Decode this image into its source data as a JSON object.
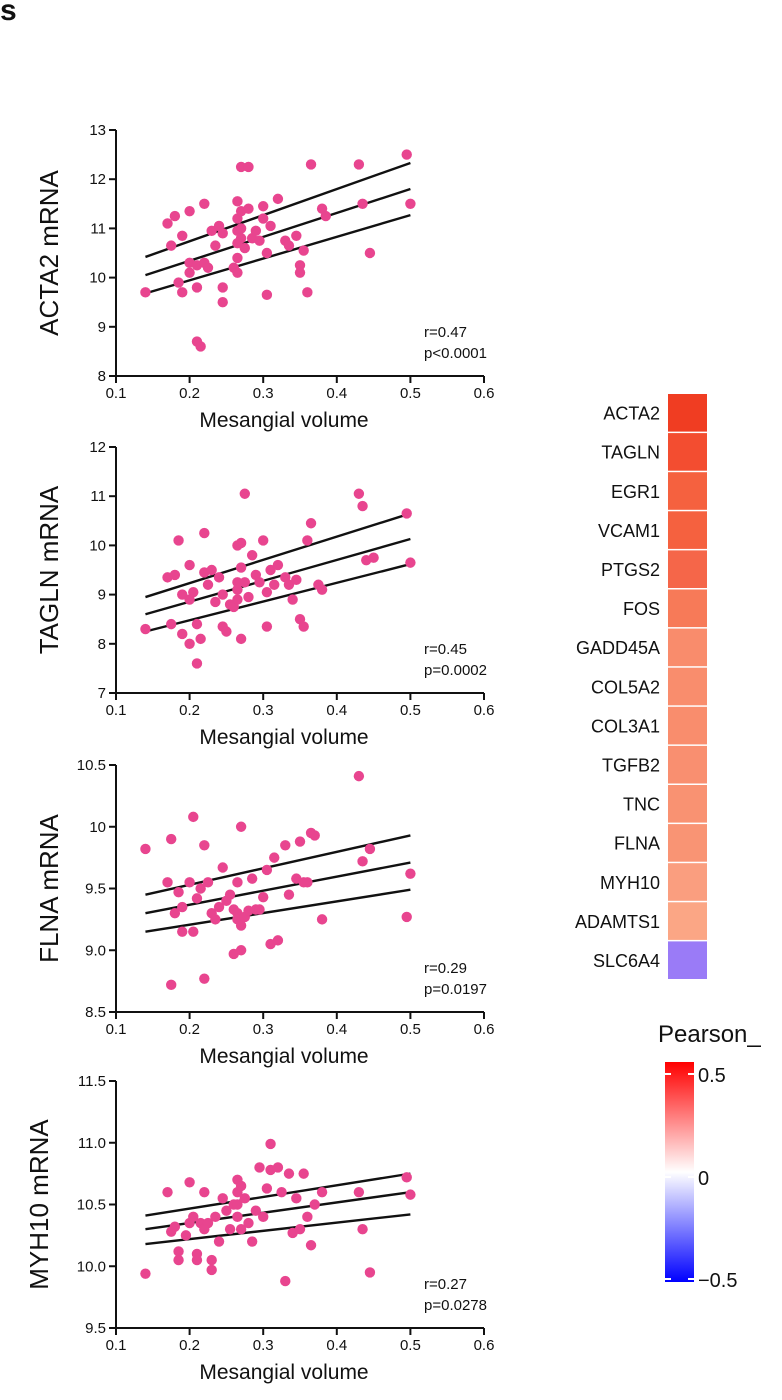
{
  "panel_letter": "s",
  "chart_data": [
    {
      "type": "scatter",
      "ylabel": "ACTA2 mRNA",
      "xlabel": "Mesangial volume",
      "xlim": [
        0.1,
        0.6
      ],
      "xticks": [
        "0.1",
        "0.2",
        "0.3",
        "0.4",
        "0.5",
        "0.6"
      ],
      "ylim": [
        8,
        13
      ],
      "yticks": [
        "8",
        "9",
        "10",
        "11",
        "12",
        "13"
      ],
      "r_text": "r=0.47",
      "p_text": "p<0.0001",
      "point_color": "#e8458f",
      "fit": {
        "x0": 0.14,
        "x1": 0.5,
        "mid": [
          10.05,
          11.8
        ],
        "upper": [
          10.42,
          12.33
        ],
        "lower": [
          9.68,
          11.27
        ]
      },
      "points": [
        [
          0.14,
          9.7
        ],
        [
          0.17,
          11.1
        ],
        [
          0.175,
          10.65
        ],
        [
          0.18,
          11.25
        ],
        [
          0.185,
          9.9
        ],
        [
          0.19,
          10.85
        ],
        [
          0.19,
          9.7
        ],
        [
          0.2,
          11.35
        ],
        [
          0.2,
          10.3
        ],
        [
          0.2,
          10.1
        ],
        [
          0.21,
          10.25
        ],
        [
          0.21,
          9.8
        ],
        [
          0.21,
          8.7
        ],
        [
          0.215,
          8.6
        ],
        [
          0.22,
          11.5
        ],
        [
          0.22,
          10.3
        ],
        [
          0.225,
          10.2
        ],
        [
          0.23,
          10.95
        ],
        [
          0.235,
          10.65
        ],
        [
          0.24,
          11.05
        ],
        [
          0.245,
          10.9
        ],
        [
          0.245,
          9.8
        ],
        [
          0.245,
          9.5
        ],
        [
          0.26,
          10.2
        ],
        [
          0.265,
          11.55
        ],
        [
          0.265,
          11.2
        ],
        [
          0.265,
          10.95
        ],
        [
          0.265,
          10.7
        ],
        [
          0.265,
          10.4
        ],
        [
          0.265,
          10.1
        ],
        [
          0.27,
          12.25
        ],
        [
          0.27,
          11.35
        ],
        [
          0.27,
          11.0
        ],
        [
          0.27,
          10.8
        ],
        [
          0.275,
          10.6
        ],
        [
          0.28,
          12.25
        ],
        [
          0.28,
          11.4
        ],
        [
          0.285,
          10.8
        ],
        [
          0.29,
          10.95
        ],
        [
          0.295,
          10.75
        ],
        [
          0.3,
          11.45
        ],
        [
          0.3,
          11.2
        ],
        [
          0.305,
          10.5
        ],
        [
          0.305,
          9.65
        ],
        [
          0.31,
          11.05
        ],
        [
          0.32,
          11.6
        ],
        [
          0.33,
          10.75
        ],
        [
          0.335,
          10.65
        ],
        [
          0.345,
          10.85
        ],
        [
          0.35,
          10.25
        ],
        [
          0.35,
          10.1
        ],
        [
          0.355,
          10.55
        ],
        [
          0.36,
          9.7
        ],
        [
          0.365,
          12.3
        ],
        [
          0.38,
          11.4
        ],
        [
          0.385,
          11.25
        ],
        [
          0.43,
          12.3
        ],
        [
          0.435,
          11.5
        ],
        [
          0.445,
          10.5
        ],
        [
          0.495,
          12.5
        ],
        [
          0.5,
          11.5
        ]
      ]
    },
    {
      "type": "scatter",
      "ylabel": "TAGLN mRNA",
      "xlabel": "Mesangial volume",
      "xlim": [
        0.1,
        0.6
      ],
      "xticks": [
        "0.1",
        "0.2",
        "0.3",
        "0.4",
        "0.5",
        "0.6"
      ],
      "ylim": [
        7,
        12
      ],
      "yticks": [
        "7",
        "8",
        "9",
        "10",
        "11",
        "12"
      ],
      "r_text": "r=0.45",
      "p_text": "p=0.0002",
      "point_color": "#e8458f",
      "fit": {
        "x0": 0.14,
        "x1": 0.5,
        "mid": [
          8.6,
          10.13
        ],
        "upper": [
          8.95,
          10.65
        ],
        "lower": [
          8.25,
          9.62
        ]
      },
      "points": [
        [
          0.14,
          8.3
        ],
        [
          0.17,
          9.35
        ],
        [
          0.175,
          8.4
        ],
        [
          0.18,
          9.4
        ],
        [
          0.185,
          10.1
        ],
        [
          0.19,
          8.2
        ],
        [
          0.19,
          9.0
        ],
        [
          0.2,
          8.0
        ],
        [
          0.2,
          8.9
        ],
        [
          0.2,
          9.6
        ],
        [
          0.205,
          9.05
        ],
        [
          0.21,
          7.6
        ],
        [
          0.21,
          8.4
        ],
        [
          0.215,
          8.1
        ],
        [
          0.22,
          10.25
        ],
        [
          0.22,
          9.45
        ],
        [
          0.225,
          9.2
        ],
        [
          0.23,
          9.5
        ],
        [
          0.235,
          8.85
        ],
        [
          0.24,
          9.35
        ],
        [
          0.245,
          9.0
        ],
        [
          0.245,
          8.35
        ],
        [
          0.25,
          8.25
        ],
        [
          0.255,
          8.8
        ],
        [
          0.26,
          8.75
        ],
        [
          0.265,
          10.0
        ],
        [
          0.265,
          9.25
        ],
        [
          0.265,
          9.1
        ],
        [
          0.265,
          8.9
        ],
        [
          0.27,
          8.1
        ],
        [
          0.27,
          9.55
        ],
        [
          0.27,
          10.05
        ],
        [
          0.275,
          11.05
        ],
        [
          0.275,
          9.25
        ],
        [
          0.28,
          8.95
        ],
        [
          0.285,
          9.8
        ],
        [
          0.29,
          9.4
        ],
        [
          0.295,
          9.25
        ],
        [
          0.3,
          10.1
        ],
        [
          0.305,
          9.05
        ],
        [
          0.305,
          8.35
        ],
        [
          0.31,
          9.5
        ],
        [
          0.315,
          9.2
        ],
        [
          0.32,
          9.6
        ],
        [
          0.33,
          9.35
        ],
        [
          0.335,
          9.2
        ],
        [
          0.34,
          8.9
        ],
        [
          0.345,
          9.3
        ],
        [
          0.35,
          8.5
        ],
        [
          0.355,
          8.35
        ],
        [
          0.36,
          10.1
        ],
        [
          0.365,
          10.45
        ],
        [
          0.375,
          9.2
        ],
        [
          0.38,
          9.1
        ],
        [
          0.43,
          11.05
        ],
        [
          0.435,
          10.8
        ],
        [
          0.44,
          9.7
        ],
        [
          0.45,
          9.75
        ],
        [
          0.495,
          10.65
        ],
        [
          0.5,
          9.65
        ]
      ]
    },
    {
      "type": "scatter",
      "ylabel": "FLNA mRNA",
      "xlabel": "Mesangial volume",
      "xlim": [
        0.1,
        0.6
      ],
      "xticks": [
        "0.1",
        "0.2",
        "0.3",
        "0.4",
        "0.5",
        "0.6"
      ],
      "ylim": [
        8.5,
        10.5
      ],
      "yticks": [
        "8.5",
        "9.0",
        "9.5",
        "10",
        "10.5"
      ],
      "r_text": "r=0.29",
      "p_text": "p=0.0197",
      "point_color": "#e8458f",
      "fit": {
        "x0": 0.14,
        "x1": 0.5,
        "mid": [
          9.3,
          9.71
        ],
        "upper": [
          9.45,
          9.93
        ],
        "lower": [
          9.15,
          9.49
        ]
      },
      "points": [
        [
          0.14,
          9.82
        ],
        [
          0.17,
          9.55
        ],
        [
          0.175,
          9.9
        ],
        [
          0.175,
          8.72
        ],
        [
          0.18,
          9.3
        ],
        [
          0.185,
          9.47
        ],
        [
          0.19,
          9.15
        ],
        [
          0.19,
          9.35
        ],
        [
          0.2,
          9.55
        ],
        [
          0.205,
          10.08
        ],
        [
          0.205,
          9.15
        ],
        [
          0.21,
          9.42
        ],
        [
          0.215,
          9.5
        ],
        [
          0.22,
          9.85
        ],
        [
          0.22,
          8.77
        ],
        [
          0.225,
          9.55
        ],
        [
          0.23,
          9.3
        ],
        [
          0.235,
          9.25
        ],
        [
          0.24,
          9.35
        ],
        [
          0.245,
          9.67
        ],
        [
          0.25,
          9.4
        ],
        [
          0.255,
          9.45
        ],
        [
          0.26,
          9.33
        ],
        [
          0.26,
          8.97
        ],
        [
          0.265,
          9.55
        ],
        [
          0.265,
          9.3
        ],
        [
          0.265,
          9.25
        ],
        [
          0.27,
          9.0
        ],
        [
          0.27,
          9.2
        ],
        [
          0.27,
          10.0
        ],
        [
          0.275,
          9.27
        ],
        [
          0.28,
          9.32
        ],
        [
          0.285,
          9.58
        ],
        [
          0.29,
          9.33
        ],
        [
          0.295,
          9.33
        ],
        [
          0.3,
          9.43
        ],
        [
          0.305,
          9.65
        ],
        [
          0.31,
          9.05
        ],
        [
          0.315,
          9.75
        ],
        [
          0.32,
          9.08
        ],
        [
          0.33,
          9.85
        ],
        [
          0.335,
          9.45
        ],
        [
          0.345,
          9.58
        ],
        [
          0.35,
          9.88
        ],
        [
          0.355,
          9.55
        ],
        [
          0.36,
          9.55
        ],
        [
          0.365,
          9.95
        ],
        [
          0.37,
          9.93
        ],
        [
          0.38,
          9.25
        ],
        [
          0.43,
          10.41
        ],
        [
          0.435,
          9.72
        ],
        [
          0.445,
          9.82
        ],
        [
          0.495,
          9.27
        ],
        [
          0.5,
          9.62
        ]
      ]
    },
    {
      "type": "scatter",
      "ylabel": "MYH10 mRNA",
      "xlabel": "Mesangial volume",
      "xlim": [
        0.1,
        0.6
      ],
      "xticks": [
        "0.1",
        "0.2",
        "0.3",
        "0.4",
        "0.5",
        "0.6"
      ],
      "ylim": [
        9.5,
        11.5
      ],
      "yticks": [
        "9.5",
        "10.0",
        "10.5",
        "11.0",
        "11.5"
      ],
      "r_text": "r=0.27",
      "p_text": "p=0.0278",
      "point_color": "#e8458f",
      "fit": {
        "x0": 0.14,
        "x1": 0.5,
        "mid": [
          10.3,
          10.6
        ],
        "upper": [
          10.41,
          10.75
        ],
        "lower": [
          10.18,
          10.42
        ]
      },
      "points": [
        [
          0.14,
          9.94
        ],
        [
          0.17,
          10.6
        ],
        [
          0.175,
          10.28
        ],
        [
          0.18,
          10.32
        ],
        [
          0.185,
          10.12
        ],
        [
          0.185,
          10.05
        ],
        [
          0.195,
          10.25
        ],
        [
          0.2,
          10.35
        ],
        [
          0.2,
          10.68
        ],
        [
          0.205,
          10.4
        ],
        [
          0.21,
          10.1
        ],
        [
          0.21,
          10.05
        ],
        [
          0.215,
          10.35
        ],
        [
          0.22,
          10.6
        ],
        [
          0.22,
          10.3
        ],
        [
          0.225,
          10.35
        ],
        [
          0.23,
          10.05
        ],
        [
          0.23,
          9.97
        ],
        [
          0.235,
          10.4
        ],
        [
          0.24,
          10.2
        ],
        [
          0.245,
          10.55
        ],
        [
          0.25,
          10.45
        ],
        [
          0.255,
          10.3
        ],
        [
          0.26,
          10.5
        ],
        [
          0.265,
          10.7
        ],
        [
          0.265,
          10.6
        ],
        [
          0.265,
          10.5
        ],
        [
          0.265,
          10.4
        ],
        [
          0.27,
          10.3
        ],
        [
          0.27,
          10.65
        ],
        [
          0.275,
          10.55
        ],
        [
          0.28,
          10.35
        ],
        [
          0.285,
          10.2
        ],
        [
          0.29,
          10.45
        ],
        [
          0.295,
          10.8
        ],
        [
          0.3,
          10.4
        ],
        [
          0.305,
          10.63
        ],
        [
          0.31,
          10.99
        ],
        [
          0.31,
          10.78
        ],
        [
          0.32,
          10.8
        ],
        [
          0.325,
          10.6
        ],
        [
          0.33,
          9.88
        ],
        [
          0.335,
          10.75
        ],
        [
          0.34,
          10.27
        ],
        [
          0.345,
          10.55
        ],
        [
          0.35,
          10.3
        ],
        [
          0.355,
          10.75
        ],
        [
          0.36,
          10.4
        ],
        [
          0.365,
          10.17
        ],
        [
          0.37,
          10.5
        ],
        [
          0.38,
          10.6
        ],
        [
          0.43,
          10.6
        ],
        [
          0.435,
          10.3
        ],
        [
          0.445,
          9.95
        ],
        [
          0.495,
          10.72
        ],
        [
          0.5,
          10.58
        ]
      ]
    },
    {
      "type": "heatmap",
      "genes": [
        "ACTA2",
        "TAGLN",
        "EGR1",
        "VCAM1",
        "PTGS2",
        "FOS",
        "GADD45A",
        "COL5A2",
        "COL3A1",
        "TGFB2",
        "TNC",
        "FLNA",
        "MYH10",
        "ADAMTS1",
        "SLC6A4"
      ],
      "colors": [
        "#f03d22",
        "#f34d30",
        "#f5613f",
        "#f5613f",
        "#f56649",
        "#f77a58",
        "#f98c6c",
        "#f98d6d",
        "#f98d6d",
        "#f98f70",
        "#f99272",
        "#f99474",
        "#fa9e7f",
        "#fba685",
        "#9a7bf7"
      ],
      "legend_title": "Pearson_",
      "legend_ticks": [
        "0.5",
        "0",
        "−0.5"
      ],
      "legend_colors": [
        "#ff0000",
        "#ffffff",
        "#0000ff"
      ]
    }
  ]
}
